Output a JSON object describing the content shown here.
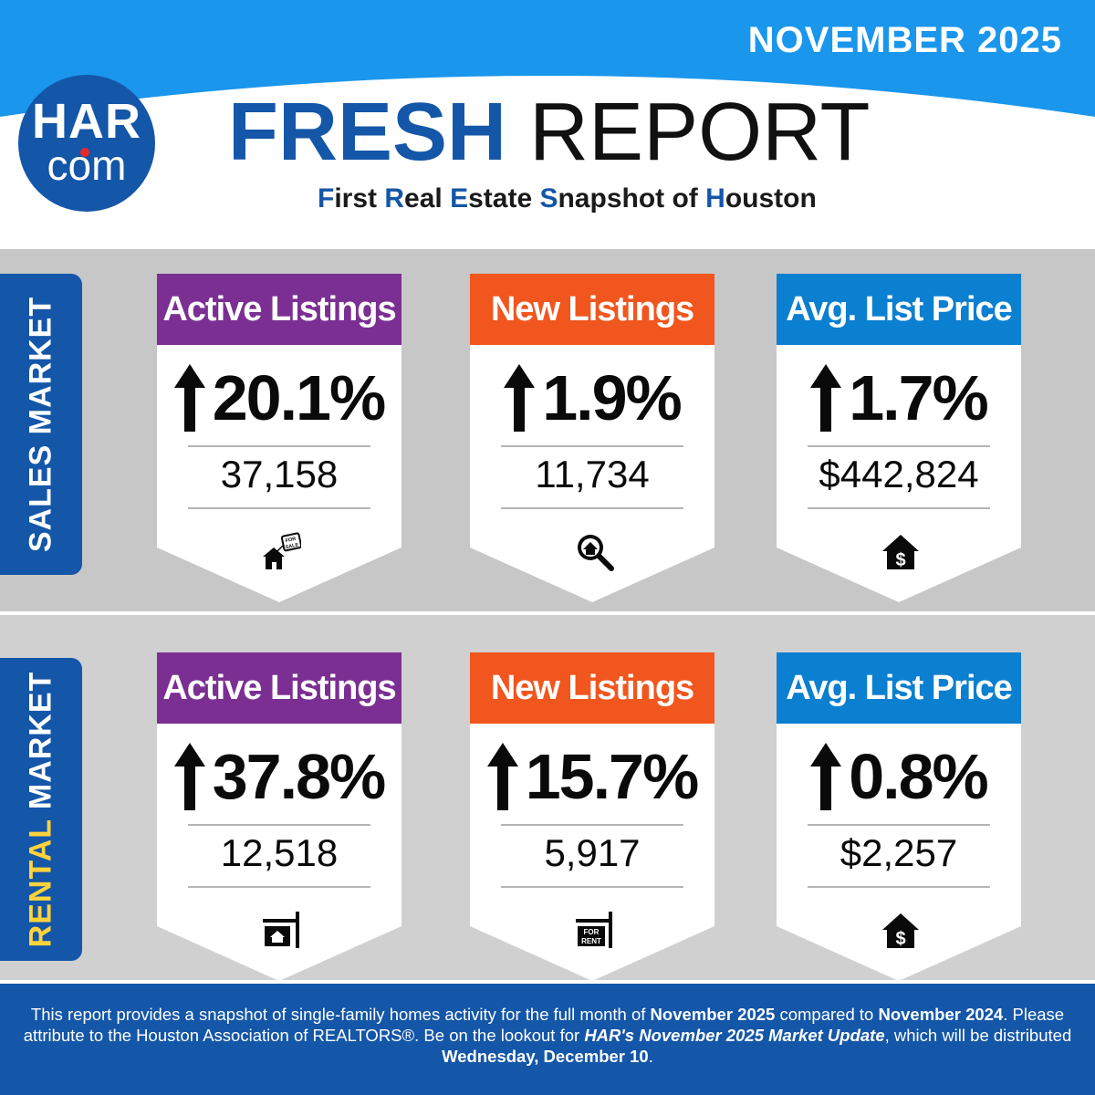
{
  "header": {
    "month": "NOVEMBER 2025",
    "logo_top": "HAR",
    "logo_bottom": "com",
    "title_part1": "FRESH",
    "title_part2": "REPORT",
    "subtitle": [
      {
        "text": "F",
        "hl": true
      },
      {
        "text": "irst ",
        "hl": false
      },
      {
        "text": "R",
        "hl": true
      },
      {
        "text": "eal ",
        "hl": false
      },
      {
        "text": "E",
        "hl": true
      },
      {
        "text": "state ",
        "hl": false
      },
      {
        "text": "S",
        "hl": true
      },
      {
        "text": "napshot of ",
        "hl": false
      },
      {
        "text": "H",
        "hl": true
      },
      {
        "text": "ouston",
        "hl": false
      }
    ]
  },
  "sales": {
    "label_part1": "SALES",
    "label_part2": "MARKET",
    "cards": [
      {
        "title": "Active Listings",
        "change": "20.1%",
        "value": "37,158",
        "icon": "house-for-sale-icon"
      },
      {
        "title": "New Listings",
        "change": "1.9%",
        "value": "11,734",
        "icon": "magnifier-house-icon"
      },
      {
        "title": "Avg. List Price",
        "change": "1.7%",
        "value": "$442,824",
        "icon": "house-dollar-icon"
      }
    ]
  },
  "rental": {
    "label_part1": "RENTAL",
    "label_part2": "MARKET",
    "cards": [
      {
        "title": "Active Listings",
        "change": "37.8%",
        "value": "12,518",
        "icon": "house-sign-icon"
      },
      {
        "title": "New Listings",
        "change": "15.7%",
        "value": "5,917",
        "icon": "for-rent-sign-icon"
      },
      {
        "title": "Avg. List Price",
        "change": "0.8%",
        "value": "$2,257",
        "icon": "house-dollar-icon"
      }
    ]
  },
  "icon_text": {
    "for": "FOR",
    "sale": "SALE",
    "rent": "RENT",
    "dollar": "$"
  },
  "colors": {
    "brand_blue": "#1456a8",
    "purple": "#7b2f92",
    "orange": "#f0561e",
    "light_blue": "#0b7fd0",
    "yellow": "#ffd33a"
  },
  "footer": {
    "t1": "This report provides a snapshot of single-family homes activity for the full month of ",
    "b1": "November 2025",
    "t2": " compared to ",
    "b2": "November 2024",
    "t3": ". Please attribute to the Houston Association of REALTORS®. Be on the lookout for ",
    "i1": "HAR's November 2025 Market Update",
    "t4": ", which will be distributed ",
    "b3": "Wednesday, December 10",
    "t5": "."
  }
}
